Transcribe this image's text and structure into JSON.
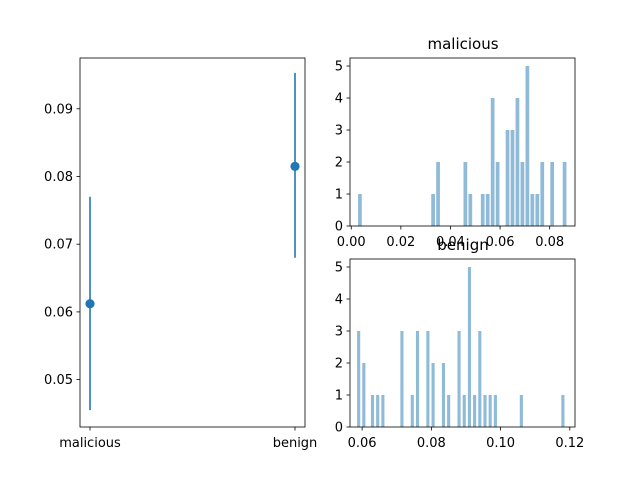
{
  "chart_data": [
    {
      "type": "errorbar",
      "categories": [
        "malicious",
        "benign"
      ],
      "series": [
        {
          "values": [
            0.0612,
            0.0815
          ],
          "err_low": [
            0.0455,
            0.068
          ],
          "err_high": [
            0.077,
            0.0953
          ]
        }
      ],
      "ylim": [
        0.043,
        0.0975
      ],
      "yticks": [
        "0.05",
        "0.06",
        "0.07",
        "0.08",
        "0.09"
      ],
      "title": "",
      "xlabel": "",
      "ylabel": "",
      "grid": false,
      "colors": {
        "marker": "#1f77b4",
        "line": "#1f77b4"
      }
    },
    {
      "type": "bar",
      "title": "malicious",
      "bins": [
        {
          "x": 0.0035,
          "count": 1
        },
        {
          "x": 0.033,
          "count": 1
        },
        {
          "x": 0.035,
          "count": 2
        },
        {
          "x": 0.046,
          "count": 2
        },
        {
          "x": 0.048,
          "count": 1
        },
        {
          "x": 0.053,
          "count": 1
        },
        {
          "x": 0.055,
          "count": 1
        },
        {
          "x": 0.057,
          "count": 4
        },
        {
          "x": 0.059,
          "count": 2
        },
        {
          "x": 0.063,
          "count": 3
        },
        {
          "x": 0.065,
          "count": 3
        },
        {
          "x": 0.067,
          "count": 4
        },
        {
          "x": 0.069,
          "count": 2
        },
        {
          "x": 0.071,
          "count": 5
        },
        {
          "x": 0.073,
          "count": 1
        },
        {
          "x": 0.075,
          "count": 1
        },
        {
          "x": 0.077,
          "count": 2
        },
        {
          "x": 0.081,
          "count": 2
        },
        {
          "x": 0.086,
          "count": 2
        }
      ],
      "bar_width": 0.0015,
      "xlim": [
        -0.0005,
        0.0902
      ],
      "ylim": [
        0,
        5.25
      ],
      "xticks": [
        {
          "value": 0.0,
          "label": "0.00"
        },
        {
          "value": 0.02,
          "label": "0.02"
        },
        {
          "value": 0.04,
          "label": "0.04"
        },
        {
          "value": 0.06,
          "label": "0.06"
        },
        {
          "value": 0.08,
          "label": "0.08"
        }
      ],
      "yticks": [
        "0",
        "1",
        "2",
        "3",
        "4",
        "5"
      ],
      "grid": false,
      "colors": {
        "bar": "#8fbbd9"
      }
    },
    {
      "type": "bar",
      "title": "benign",
      "bins": [
        {
          "x": 0.059,
          "count": 3
        },
        {
          "x": 0.0605,
          "count": 2
        },
        {
          "x": 0.063,
          "count": 1
        },
        {
          "x": 0.0645,
          "count": 1
        },
        {
          "x": 0.066,
          "count": 1
        },
        {
          "x": 0.0715,
          "count": 3
        },
        {
          "x": 0.0745,
          "count": 1
        },
        {
          "x": 0.076,
          "count": 3
        },
        {
          "x": 0.079,
          "count": 3
        },
        {
          "x": 0.0805,
          "count": 2
        },
        {
          "x": 0.0835,
          "count": 2
        },
        {
          "x": 0.085,
          "count": 1
        },
        {
          "x": 0.088,
          "count": 3
        },
        {
          "x": 0.0895,
          "count": 1
        },
        {
          "x": 0.091,
          "count": 5
        },
        {
          "x": 0.0925,
          "count": 1
        },
        {
          "x": 0.094,
          "count": 3
        },
        {
          "x": 0.0955,
          "count": 1
        },
        {
          "x": 0.097,
          "count": 1
        },
        {
          "x": 0.0985,
          "count": 1
        },
        {
          "x": 0.106,
          "count": 1
        },
        {
          "x": 0.118,
          "count": 1
        }
      ],
      "bar_width": 0.0009,
      "xlim": [
        0.0565,
        0.1215
      ],
      "ylim": [
        0,
        5.25
      ],
      "xticks": [
        {
          "value": 0.06,
          "label": "0.06"
        },
        {
          "value": 0.08,
          "label": "0.08"
        },
        {
          "value": 0.1,
          "label": "0.10"
        },
        {
          "value": 0.12,
          "label": "0.12"
        }
      ],
      "yticks": [
        "0",
        "1",
        "2",
        "3",
        "4",
        "5"
      ],
      "grid": false,
      "colors": {
        "bar": "#8fbbd9"
      }
    }
  ]
}
